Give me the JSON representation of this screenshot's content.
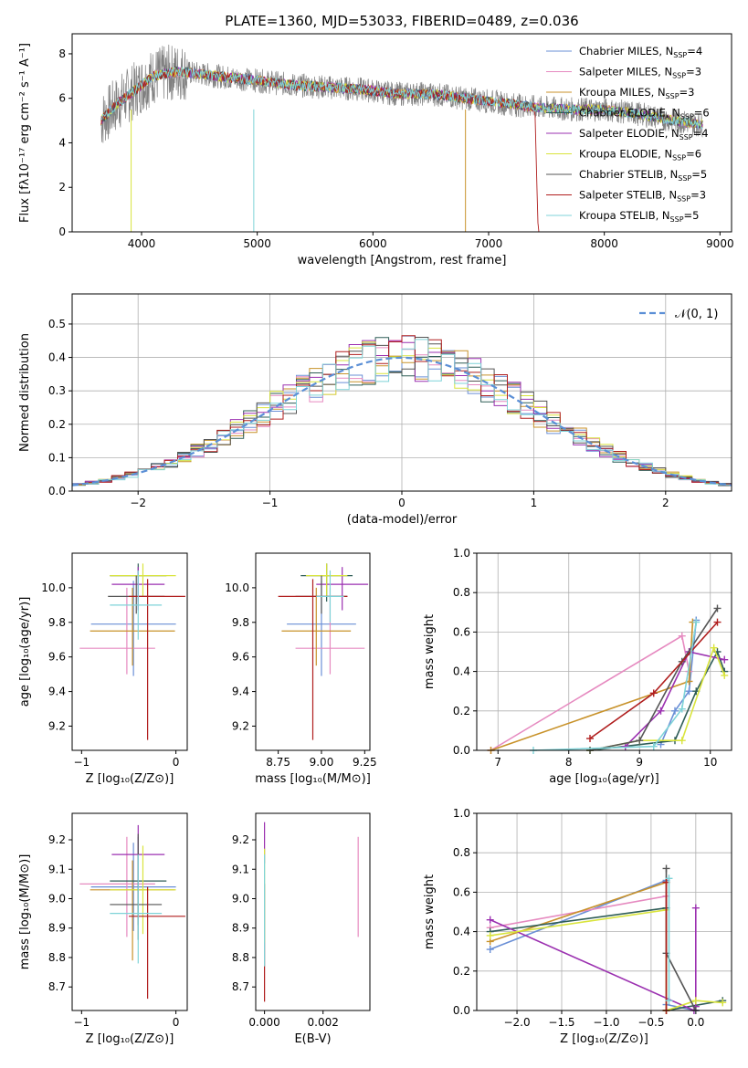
{
  "figure_title": "PLATE=1360, MJD=53033, FIBERID=0489, z=0.036",
  "colors": {
    "Chabrier MILES": "#6a8fd6",
    "Salpeter MILES": "#e68ac0",
    "Kroupa MILES": "#c8922a",
    "Chabrier ELODIE": "#2f5d57",
    "Salpeter ELODIE": "#9b30b0",
    "Kroupa ELODIE": "#d9e43c",
    "Chabrier STELIB": "#555555",
    "Salpeter STELIB": "#b01e1e",
    "Kroupa STELIB": "#7fd3d8",
    "data": "#808080",
    "extra_orange": "#e07020",
    "extra_green": "#8fd14f"
  },
  "chart_data": [
    {
      "type": "line",
      "panel": "spectrum",
      "title": "PLATE=1360, MJD=53033, FIBERID=0489, z=0.036",
      "xlabel": "wavelength [Angstrom, rest frame]",
      "ylabel": "Flux [fλ10⁻¹⁷ erg cm⁻² s⁻¹ A⁻¹]",
      "xlim": [
        3400,
        9100
      ],
      "ylim": [
        0,
        8.9
      ],
      "xticks": [
        "4000",
        "5000",
        "6000",
        "7000",
        "8000",
        "9000"
      ],
      "yticks": [
        "0",
        "2",
        "4",
        "6",
        "8"
      ],
      "legend_position": "top-right",
      "legend": [
        {
          "name": "Chabrier MILES, N",
          "sub": "SSP",
          "tail": "=4"
        },
        {
          "name": "Salpeter MILES, N",
          "sub": "SSP",
          "tail": "=3"
        },
        {
          "name": "Kroupa MILES, N",
          "sub": "SSP",
          "tail": "=3"
        },
        {
          "name": "Chabrier ELODIE, N",
          "sub": "SSP",
          "tail": "=6"
        },
        {
          "name": "Salpeter ELODIE, N",
          "sub": "SSP",
          "tail": "=4"
        },
        {
          "name": "Kroupa ELODIE, N",
          "sub": "SSP",
          "tail": "=6"
        },
        {
          "name": "Chabrier STELIB, N",
          "sub": "SSP",
          "tail": "=5"
        },
        {
          "name": "Salpeter STELIB, N",
          "sub": "SSP",
          "tail": "=3"
        },
        {
          "name": "Kroupa STELIB, N",
          "sub": "SSP",
          "tail": "=5"
        }
      ],
      "continuum": {
        "x": [
          3650,
          3800,
          3950,
          4100,
          4300,
          4500,
          4800,
          5000,
          5300,
          5600,
          5900,
          6200,
          6500,
          6800,
          7100,
          7400,
          7700,
          8000,
          8300,
          8600,
          8850
        ],
        "y": [
          5.0,
          5.8,
          6.4,
          7.0,
          7.2,
          7.1,
          6.9,
          6.8,
          6.6,
          6.5,
          6.4,
          6.2,
          6.2,
          6.0,
          5.8,
          5.6,
          5.5,
          5.5,
          5.3,
          5.0,
          4.8
        ]
      }
    },
    {
      "type": "step",
      "panel": "residuals",
      "xlabel": "(data-model)/error",
      "ylabel": "Normed distribution",
      "xlim": [
        -2.5,
        2.5
      ],
      "ylim": [
        0,
        0.59
      ],
      "xticks": [
        "−2",
        "−1",
        "0",
        "1",
        "2"
      ],
      "yticks": [
        "0.0",
        "0.1",
        "0.2",
        "0.3",
        "0.4",
        "0.5"
      ],
      "legend": "𝒩(0, 1)",
      "bin_width": 0.1
    },
    {
      "type": "scatter",
      "panel": "age-vs-Z",
      "xlabel": "Z [log₁₀(Z/Z⊙)]",
      "ylabel": "age  [log₁₀(age/yr)]",
      "xlim": [
        -1.1,
        0.12
      ],
      "ylim": [
        9.06,
        10.2
      ],
      "xticks": [
        "−1",
        "0"
      ],
      "yticks": [
        "9.2",
        "9.4",
        "9.6",
        "9.8",
        "10.0"
      ],
      "points": [
        {
          "series": "Chabrier MILES",
          "x": -0.45,
          "xerr": [
            0.45,
            0.45
          ],
          "y": 9.79,
          "yerr": [
            0.3,
            0.25
          ]
        },
        {
          "series": "Salpeter MILES",
          "x": -0.52,
          "xerr": [
            0.5,
            0.3
          ],
          "y": 9.65,
          "yerr": [
            0.15,
            0.35
          ]
        },
        {
          "series": "Kroupa MILES",
          "x": -0.46,
          "xerr": [
            0.45,
            0.45
          ],
          "y": 9.75,
          "yerr": [
            0.2,
            0.25
          ]
        },
        {
          "series": "Chabrier ELODIE",
          "x": -0.4,
          "xerr": [
            0.3,
            0.3
          ],
          "y": 10.07,
          "yerr": [
            0.15,
            0.07
          ]
        },
        {
          "series": "Salpeter ELODIE",
          "x": -0.4,
          "xerr": [
            0.28,
            0.28
          ],
          "y": 10.02,
          "yerr": [
            0.15,
            0.1
          ]
        },
        {
          "series": "Kroupa ELODIE",
          "x": -0.35,
          "xerr": [
            0.35,
            0.35
          ],
          "y": 10.07,
          "yerr": [
            0.12,
            0.07
          ]
        },
        {
          "series": "Chabrier STELIB",
          "x": -0.42,
          "xerr": [
            0.3,
            0.3
          ],
          "y": 9.95,
          "yerr": [
            0.1,
            0.12
          ]
        },
        {
          "series": "Salpeter STELIB",
          "x": -0.3,
          "xerr": [
            0.2,
            0.4
          ],
          "y": 9.95,
          "yerr": [
            0.83,
            0.1
          ]
        },
        {
          "series": "Kroupa STELIB",
          "x": -0.4,
          "xerr": [
            0.3,
            0.25
          ],
          "y": 9.9,
          "yerr": [
            0.2,
            0.2
          ]
        }
      ]
    },
    {
      "type": "scatter",
      "panel": "age-vs-mass",
      "xlabel": "mass [log₁₀(M/M⊙)]",
      "xlim": [
        8.62,
        9.28
      ],
      "ylim": [
        9.06,
        10.2
      ],
      "xticks": [
        "8.75",
        "9.00",
        "9.25"
      ],
      "yticks": [
        "9.2",
        "9.4",
        "9.6",
        "9.8",
        "10.0"
      ],
      "points": [
        {
          "series": "Chabrier MILES",
          "x": 9.0,
          "xerr": [
            0.2,
            0.2
          ],
          "y": 9.79,
          "yerr": [
            0.3,
            0.25
          ]
        },
        {
          "series": "Salpeter MILES",
          "x": 9.05,
          "xerr": [
            0.2,
            0.2
          ],
          "y": 9.65,
          "yerr": [
            0.15,
            0.35
          ]
        },
        {
          "series": "Kroupa MILES",
          "x": 8.97,
          "xerr": [
            0.2,
            0.2
          ],
          "y": 9.75,
          "yerr": [
            0.2,
            0.25
          ]
        },
        {
          "series": "Chabrier ELODIE",
          "x": 9.03,
          "xerr": [
            0.15,
            0.15
          ],
          "y": 10.07,
          "yerr": [
            0.15,
            0.07
          ]
        },
        {
          "series": "Salpeter ELODIE",
          "x": 9.12,
          "xerr": [
            0.15,
            0.15
          ],
          "y": 10.02,
          "yerr": [
            0.15,
            0.1
          ]
        },
        {
          "series": "Kroupa ELODIE",
          "x": 9.03,
          "xerr": [
            0.12,
            0.12
          ],
          "y": 10.07,
          "yerr": [
            0.12,
            0.07
          ]
        },
        {
          "series": "Chabrier STELIB",
          "x": 9.0,
          "xerr": [
            0.15,
            0.15
          ],
          "y": 9.95,
          "yerr": [
            0.1,
            0.12
          ]
        },
        {
          "series": "Salpeter STELIB",
          "x": 8.95,
          "xerr": [
            0.2,
            0.2
          ],
          "y": 9.95,
          "yerr": [
            0.83,
            0.1
          ]
        },
        {
          "series": "Kroupa STELIB",
          "x": 9.05,
          "xerr": [
            0.08,
            0.08
          ],
          "y": 9.95,
          "yerr": [
            0.15,
            0.15
          ]
        }
      ]
    },
    {
      "type": "line",
      "panel": "weight-vs-age",
      "xlabel": "age  [log₁₀(age/yr)]",
      "ylabel": "mass weight",
      "xlim": [
        6.7,
        10.3
      ],
      "ylim": [
        0,
        1.0
      ],
      "xticks": [
        "7",
        "8",
        "9",
        "10"
      ],
      "yticks": [
        "0.0",
        "0.2",
        "0.4",
        "0.6",
        "0.8",
        "1.0"
      ],
      "series": [
        {
          "name": "Chabrier MILES",
          "x": [
            9.3,
            9.5,
            9.7,
            9.8
          ],
          "y": [
            0.03,
            0.2,
            0.3,
            0.66
          ]
        },
        {
          "name": "Salpeter MILES",
          "x": [
            6.9,
            9.6,
            9.7
          ],
          "y": [
            0.0,
            0.58,
            0.4
          ]
        },
        {
          "name": "Kroupa MILES",
          "x": [
            6.9,
            9.7,
            9.75
          ],
          "y": [
            0.0,
            0.35,
            0.65
          ]
        },
        {
          "name": "Chabrier ELODIE",
          "x": [
            8.3,
            9.5,
            9.8,
            10.1,
            10.2
          ],
          "y": [
            0.0,
            0.05,
            0.3,
            0.5,
            0.4
          ]
        },
        {
          "name": "Salpeter ELODIE",
          "x": [
            8.8,
            9.3,
            9.7,
            10.2
          ],
          "y": [
            0.02,
            0.2,
            0.5,
            0.46
          ]
        },
        {
          "name": "Kroupa ELODIE",
          "x": [
            8.3,
            9.0,
            9.6,
            10.05,
            10.2
          ],
          "y": [
            0.0,
            0.05,
            0.05,
            0.52,
            0.38
          ]
        },
        {
          "name": "Chabrier STELIB",
          "x": [
            8.3,
            9.0,
            9.6,
            10.1
          ],
          "y": [
            0.0,
            0.05,
            0.45,
            0.72
          ]
        },
        {
          "name": "Salpeter STELIB",
          "x": [
            8.3,
            9.2,
            10.1
          ],
          "y": [
            0.06,
            0.29,
            0.65
          ]
        },
        {
          "name": "Kroupa STELIB",
          "x": [
            7.5,
            9.2,
            9.6,
            9.8
          ],
          "y": [
            0.0,
            0.02,
            0.21,
            0.65
          ]
        }
      ]
    },
    {
      "type": "scatter",
      "panel": "mass-vs-Z",
      "xlabel": "Z [log₁₀(Z/Z⊙)]",
      "ylabel": "mass [log₁₀(M/M⊙)]",
      "xlim": [
        -1.1,
        0.12
      ],
      "ylim": [
        8.62,
        9.29
      ],
      "xticks": [
        "−1",
        "0"
      ],
      "yticks": [
        "8.7",
        "8.8",
        "8.9",
        "9.0",
        "9.1",
        "9.2"
      ],
      "points": [
        {
          "series": "Chabrier MILES",
          "x": -0.45,
          "xerr": [
            0.45,
            0.45
          ],
          "y": 9.04,
          "yerr": [
            0.15,
            0.15
          ]
        },
        {
          "series": "Salpeter MILES",
          "x": -0.52,
          "xerr": [
            0.5,
            0.3
          ],
          "y": 9.05,
          "yerr": [
            0.18,
            0.16
          ]
        },
        {
          "series": "Kroupa MILES",
          "x": -0.46,
          "xerr": [
            0.45,
            0.45
          ],
          "y": 9.03,
          "yerr": [
            0.24,
            0.1
          ]
        },
        {
          "series": "Chabrier ELODIE",
          "x": -0.4,
          "xerr": [
            0.3,
            0.3
          ],
          "y": 9.06,
          "yerr": [
            0.15,
            0.15
          ]
        },
        {
          "series": "Salpeter ELODIE",
          "x": -0.4,
          "xerr": [
            0.28,
            0.28
          ],
          "y": 9.15,
          "yerr": [
            0.15,
            0.1
          ]
        },
        {
          "series": "Kroupa ELODIE",
          "x": -0.35,
          "xerr": [
            0.35,
            0.35
          ],
          "y": 9.03,
          "yerr": [
            0.15,
            0.15
          ]
        },
        {
          "series": "Chabrier STELIB",
          "x": -0.4,
          "xerr": [
            0.3,
            0.25
          ],
          "y": 8.98,
          "yerr": [
            0.12,
            0.24
          ]
        },
        {
          "series": "Salpeter STELIB",
          "x": -0.3,
          "xerr": [
            0.2,
            0.4
          ],
          "y": 8.94,
          "yerr": [
            0.28,
            0.1
          ]
        },
        {
          "series": "Kroupa STELIB",
          "x": -0.4,
          "xerr": [
            0.3,
            0.25
          ],
          "y": 8.95,
          "yerr": [
            0.17,
            0.2
          ]
        }
      ]
    },
    {
      "type": "scatter",
      "panel": "mass-vs-EBV",
      "xlabel": "E(B-V)",
      "xlim": [
        -0.0003,
        0.0036
      ],
      "ylim": [
        8.62,
        9.29
      ],
      "xticks": [
        "0.000",
        "0.002"
      ],
      "yticks": [
        "8.7",
        "8.8",
        "8.9",
        "9.0",
        "9.1",
        "9.2"
      ],
      "points": [
        {
          "series": "Salpeter ELODIE",
          "x": 0.0,
          "y": 9.22,
          "yerr": [
            0.1,
            0.04
          ]
        },
        {
          "series": "Salpeter STELIB",
          "x": 0.0,
          "y": 8.9,
          "yerr": [
            0.25,
            0.15
          ]
        },
        {
          "series": "Kroupa ELODIE",
          "x": 0.0,
          "y": 9.05,
          "yerr": [
            0.2,
            0.12
          ]
        },
        {
          "series": "Kroupa STELIB",
          "x": 0.0,
          "y": 8.95,
          "yerr": [
            0.18,
            0.2
          ]
        },
        {
          "series": "Salpeter MILES",
          "x": 0.0032,
          "y": 9.05,
          "yerr": [
            0.18,
            0.16
          ]
        }
      ]
    },
    {
      "type": "line",
      "panel": "weight-vs-Z",
      "xlabel": "Z [log₁₀(Z/Z⊙)]",
      "ylabel": "mass weight",
      "xlim": [
        -2.45,
        0.4
      ],
      "ylim": [
        0,
        1.0
      ],
      "xticks": [
        "−2.0",
        "−1.5",
        "−1.0",
        "−0.5",
        "0.0"
      ],
      "yticks": [
        "0.0",
        "0.2",
        "0.4",
        "0.6",
        "0.8",
        "1.0"
      ],
      "series": [
        {
          "name": "Chabrier MILES",
          "x": [
            -2.3,
            -0.33,
            -0.33,
            0.0
          ],
          "y": [
            0.31,
            0.66,
            0.03,
            0.0
          ]
        },
        {
          "name": "Salpeter MILES",
          "x": [
            -2.3,
            -0.33,
            -0.33
          ],
          "y": [
            0.42,
            0.58,
            0.0
          ]
        },
        {
          "name": "Kroupa MILES",
          "x": [
            -2.3,
            -0.33,
            -0.33
          ],
          "y": [
            0.35,
            0.65,
            0.0
          ]
        },
        {
          "name": "Chabrier ELODIE",
          "x": [
            -2.3,
            -0.33,
            -0.33,
            0.3
          ],
          "y": [
            0.4,
            0.52,
            0.0,
            0.05
          ]
        },
        {
          "name": "Salpeter ELODIE",
          "x": [
            -2.3,
            -0.02,
            0.0,
            0.0
          ],
          "y": [
            0.46,
            0.0,
            0.02,
            0.52
          ]
        },
        {
          "name": "Kroupa ELODIE",
          "x": [
            -2.3,
            -0.33,
            -0.33,
            0.0,
            0.3
          ],
          "y": [
            0.38,
            0.51,
            0.0,
            0.05,
            0.04
          ]
        },
        {
          "name": "Chabrier STELIB",
          "x": [
            -0.33,
            -0.33,
            0.0
          ],
          "y": [
            0.72,
            0.29,
            0.0
          ]
        },
        {
          "name": "Salpeter STELIB",
          "x": [
            -0.33,
            -0.33
          ],
          "y": [
            0.65,
            0.0
          ]
        },
        {
          "name": "Kroupa STELIB",
          "x": [
            -0.3,
            -0.3
          ],
          "y": [
            0.67,
            0.05
          ]
        }
      ]
    }
  ]
}
